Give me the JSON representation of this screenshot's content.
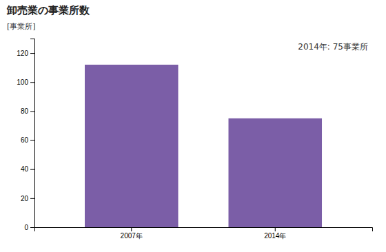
{
  "chart_data": {
    "type": "bar",
    "title": "卸売業の事業所数",
    "ylabel": "[事業所]",
    "annotation": "2014年: 75事業所",
    "categories": [
      "2007年",
      "2014年"
    ],
    "values": [
      112,
      75
    ],
    "color": "#7B5EA7",
    "ylim": [
      0,
      130
    ],
    "yticks": [
      0,
      20,
      40,
      60,
      80,
      100,
      120
    ],
    "grid": false
  }
}
